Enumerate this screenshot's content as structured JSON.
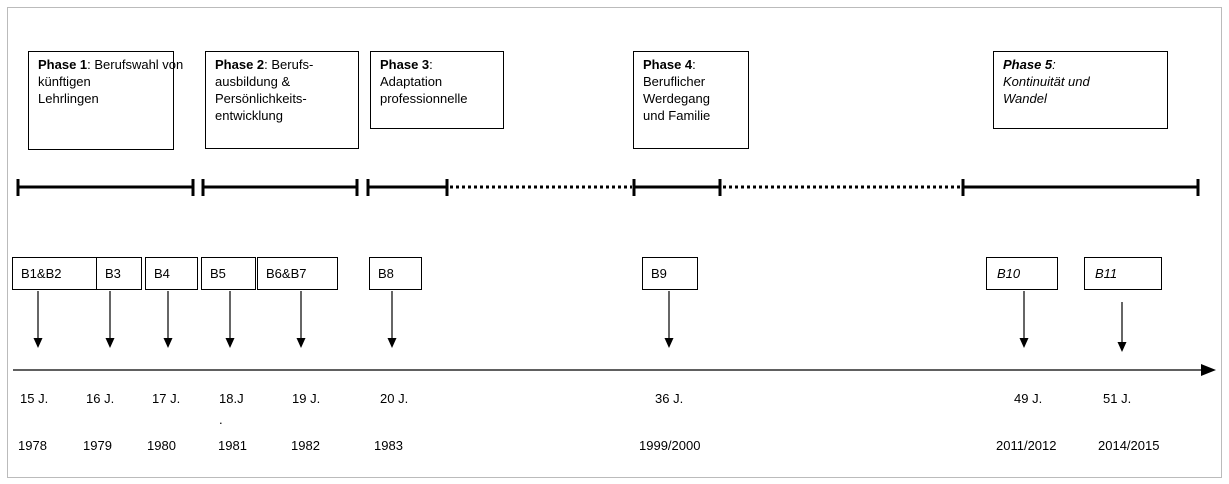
{
  "phases": [
    {
      "title": "Phase 1",
      "lines": [
        ": Berufswahl von",
        "künftigen",
        "Lehrlingen"
      ]
    },
    {
      "title": "Phase 2",
      "lines": [
        ": Berufs-",
        "ausbildung &",
        "Persönlichkeits-",
        "entwicklung"
      ]
    },
    {
      "title": "Phase 3",
      "lines": [
        ":",
        "Adaptation",
        "professionnelle"
      ]
    },
    {
      "title": "Phase 4",
      "lines": [
        ":",
        "Beruflicher",
        "Werdegang",
        "und Familie"
      ]
    },
    {
      "title": "Phase 5",
      "lines": [
        ":",
        "Kontinuität und",
        "Wandel"
      ]
    }
  ],
  "events": [
    {
      "label": "B1&B2",
      "age": "15 J.",
      "year": "1978"
    },
    {
      "label": "B3",
      "age": "16 J.",
      "year": "1979"
    },
    {
      "label": "B4",
      "age": "17 J.",
      "year": "1980"
    },
    {
      "label": "B5",
      "age": "18.J",
      "age_note": ".",
      "year": "1981"
    },
    {
      "label": "B6&B7",
      "age": "19 J.",
      "year": "1982"
    },
    {
      "label": "B8",
      "age": "20 J.",
      "year": "1983"
    },
    {
      "label": "B9",
      "age": "36 J.",
      "year": "1999/2000"
    },
    {
      "label": "B10",
      "age": "49 J.",
      "year": "2011/2012"
    },
    {
      "label": "B11",
      "age": "51 J.",
      "year": "2014/2015"
    }
  ]
}
